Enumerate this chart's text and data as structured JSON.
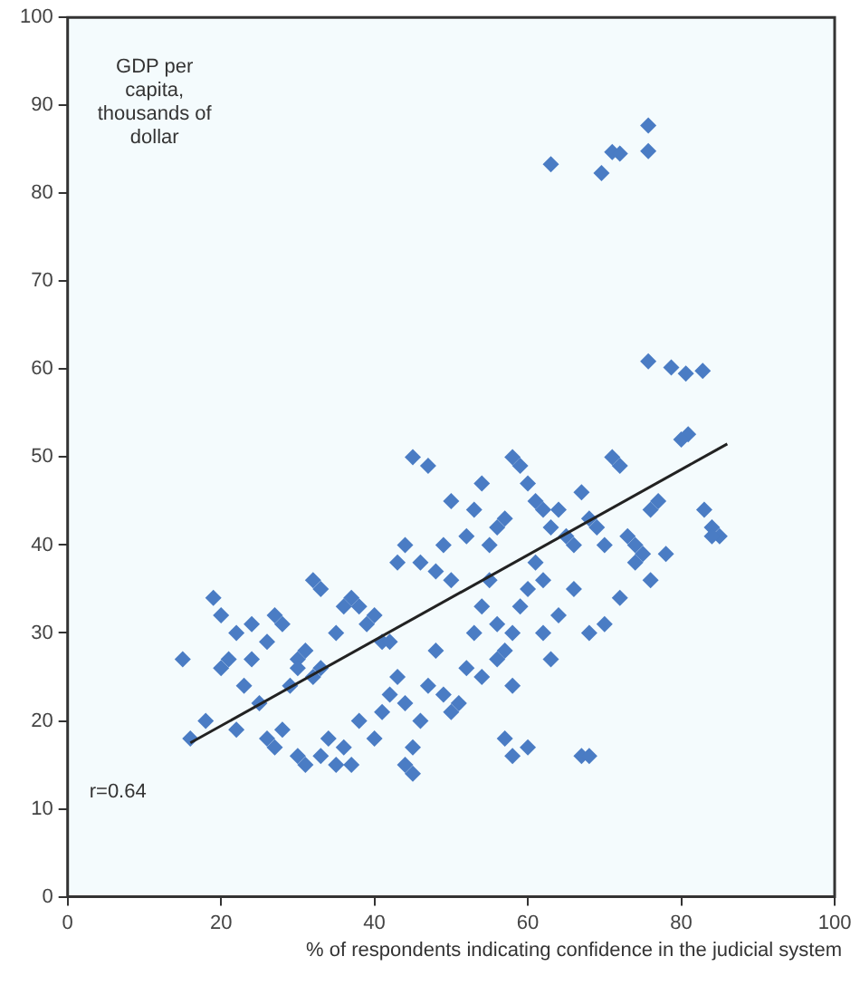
{
  "chart_data": {
    "type": "scatter",
    "xlabel": "% of respondents indicating confidence in the judicial system",
    "ylabel": "GDP per capita, thousands of dollar",
    "annotations": [
      "r=0.64"
    ],
    "xlim": [
      0,
      100
    ],
    "xticks": [
      0,
      20,
      40,
      60,
      80,
      100
    ],
    "ylim": [
      0,
      100
    ],
    "yticks": [
      0,
      10,
      20,
      30,
      40,
      50,
      60,
      70,
      80,
      90,
      100
    ],
    "grid": false,
    "legend": false,
    "marker": "diamond",
    "series": [
      {
        "color": "#4a7cc4",
        "x": [
          63,
          71,
          72,
          69.6,
          75.7,
          75.7,
          75.7,
          78.7,
          80.6,
          82.8,
          80.9,
          84,
          85,
          83,
          84,
          80,
          15,
          19,
          20,
          22,
          24,
          26,
          27,
          28,
          30,
          31,
          32,
          33,
          30,
          29,
          32,
          33,
          35,
          36,
          37,
          38,
          39,
          40,
          41,
          42,
          43,
          44,
          45,
          47,
          46,
          48,
          49,
          50,
          50,
          52,
          53,
          54,
          55,
          56,
          57,
          58,
          59,
          60,
          61,
          62,
          63,
          64,
          65,
          66,
          67,
          68,
          69,
          70,
          71,
          72,
          73,
          74,
          75,
          76,
          77,
          16,
          18,
          20,
          21,
          22,
          23,
          24,
          25,
          26,
          27,
          28,
          30,
          31,
          33,
          34,
          35,
          36,
          37,
          38,
          40,
          41,
          42,
          43,
          44,
          45,
          46,
          47,
          48,
          49,
          50,
          51,
          52,
          53,
          54,
          55,
          56,
          57,
          58,
          59,
          60,
          61,
          62,
          63,
          57,
          58,
          60,
          67,
          68,
          44,
          45,
          54,
          56,
          58,
          62,
          64,
          66,
          68,
          70,
          72,
          74,
          76,
          78
        ],
        "values": [
          83.3,
          84.7,
          84.5,
          82.3,
          87.7,
          84.8,
          60.9,
          60.2,
          59.5,
          59.8,
          52.6,
          42,
          41,
          44,
          41,
          52,
          27,
          34,
          32,
          30,
          31,
          29,
          32,
          31,
          27,
          28,
          36,
          35,
          26,
          24,
          25,
          26,
          30,
          33,
          34,
          33,
          31,
          32,
          29,
          29,
          38,
          40,
          50,
          49,
          38,
          37,
          40,
          45,
          36,
          41,
          44,
          47,
          40,
          42,
          43,
          50,
          49,
          47,
          45,
          44,
          42,
          44,
          41,
          40,
          46,
          43,
          42,
          40,
          50,
          49,
          41,
          40,
          39,
          44,
          45,
          18,
          20,
          26,
          27,
          19,
          24,
          27,
          22,
          18,
          17,
          19,
          16,
          15,
          16,
          18,
          15,
          17,
          15,
          20,
          18,
          21,
          23,
          25,
          22,
          17,
          20,
          24,
          28,
          23,
          21,
          22,
          26,
          30,
          33,
          36,
          31,
          28,
          30,
          33,
          35,
          38,
          30,
          27,
          18,
          16,
          17,
          16,
          16,
          15,
          14,
          25,
          27,
          24,
          36,
          32,
          35,
          30,
          31,
          34,
          38,
          36,
          39
        ]
      },
      {
        "type": "line",
        "color": "#222222",
        "marker": "none",
        "x": [
          16,
          86
        ],
        "values": [
          17.5,
          51.5
        ]
      }
    ]
  }
}
